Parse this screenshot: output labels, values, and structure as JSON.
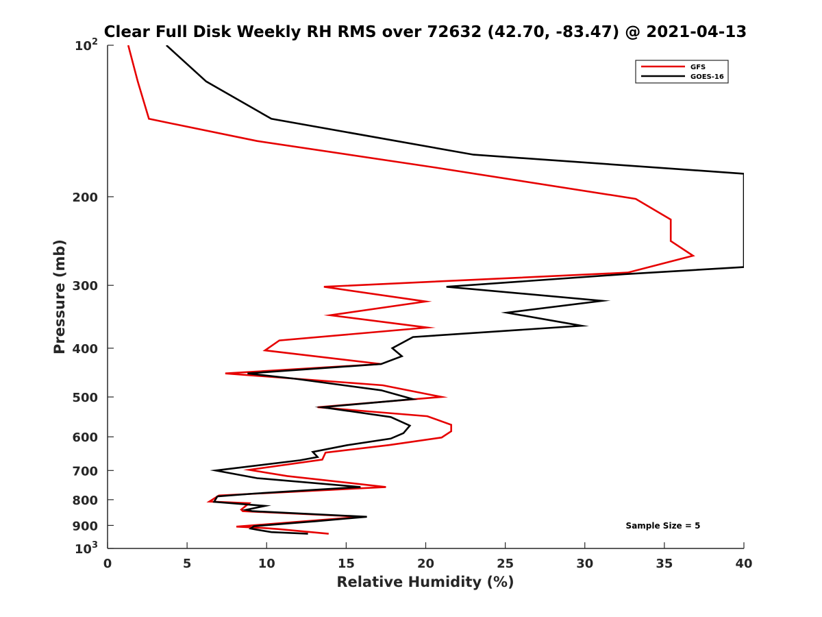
{
  "chart_data": {
    "type": "line",
    "title": "Clear Full Disk Weekly RH RMS over 72632 (42.70, -83.47) @ 2021-04-13",
    "xlabel": "Relative Humidity (%)",
    "ylabel": "Pressure (mb)",
    "xlim": [
      0,
      40
    ],
    "ylim": [
      100,
      1000
    ],
    "y_scale": "log",
    "y_reversed": true,
    "x_ticks": [
      0,
      5,
      10,
      15,
      20,
      25,
      30,
      35,
      40
    ],
    "x_tick_labels": [
      "0",
      "5",
      "10",
      "15",
      "20",
      "25",
      "30",
      "35",
      "40"
    ],
    "y_ticks": [
      100,
      200,
      300,
      400,
      500,
      600,
      700,
      800,
      900,
      1000
    ],
    "y_tick_labels": [
      "10^2",
      "200",
      "300",
      "400",
      "500",
      "600",
      "700",
      "800",
      "900",
      "10^3"
    ],
    "grid": false,
    "legend_position": "top-right",
    "annotation": "Sample Size = 5",
    "series": [
      {
        "name": "GFS",
        "color": "#e60000",
        "x": [
          1.3,
          1.9,
          2.6,
          9.4,
          20.6,
          33.2,
          35.4,
          35.4,
          36.8,
          32.7,
          13.6,
          20.0,
          14.0,
          20.1,
          10.8,
          9.9,
          17.2,
          7.4,
          17.3,
          21.0,
          13.2,
          20.1,
          21.6,
          21.6,
          21.0,
          17.7,
          13.7,
          13.5,
          8.9,
          11.3,
          17.5,
          7.0,
          6.4,
          8.9,
          8.4,
          8.5,
          16.0,
          8.1,
          9.6,
          10.7,
          13.9
        ],
        "y": [
          100,
          118,
          140,
          155,
          175,
          202,
          222,
          245,
          262,
          283,
          302,
          323,
          344,
          364,
          386,
          404,
          430,
          449,
          474,
          500,
          524,
          546,
          568,
          585,
          602,
          623,
          645,
          666,
          698,
          718,
          755,
          785,
          807,
          813,
          837,
          843,
          865,
          905,
          910,
          915,
          935
        ]
      },
      {
        "name": "GOES-16",
        "color": "#000000",
        "x": [
          3.7,
          6.2,
          10.3,
          23.0,
          40.0,
          40.0,
          32.5,
          21.3,
          31.1,
          25.1,
          29.8,
          19.2,
          17.9,
          18.5,
          17.2,
          8.8,
          11.8,
          17.2,
          19.2,
          13.5,
          17.8,
          19.0,
          18.6,
          17.8,
          15.1,
          12.9,
          13.2,
          12.1,
          6.8,
          9.4,
          15.9,
          9.2,
          6.9,
          6.7,
          9.9,
          8.7,
          9.1,
          16.3,
          13.1,
          9.2,
          9.0,
          9.4,
          10.3,
          12.6
        ],
        "y": [
          100,
          118,
          140,
          165,
          180,
          276,
          285,
          302,
          322,
          340,
          361,
          380,
          400,
          415,
          430,
          449,
          460,
          485,
          505,
          524,
          548,
          570,
          590,
          605,
          623,
          643,
          658,
          668,
          700,
          725,
          755,
          778,
          788,
          808,
          823,
          838,
          843,
          865,
          883,
          903,
          913,
          918,
          928,
          935
        ]
      }
    ]
  }
}
